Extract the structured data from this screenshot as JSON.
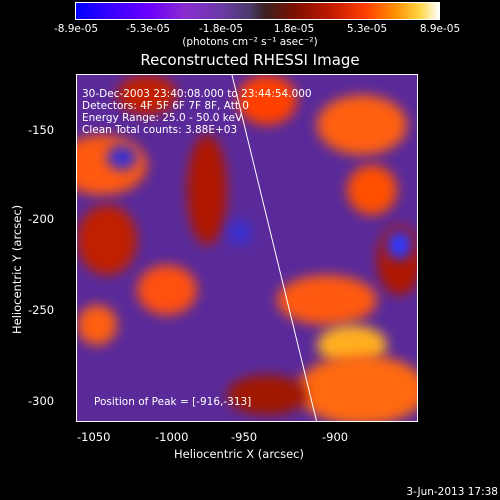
{
  "colorbar": {
    "ticks": [
      "-8.9e-05",
      "-5.3e-05",
      "-1.8e-05",
      "1.8e-05",
      "5.3e-05",
      "8.9e-05"
    ],
    "units": "(photons cm⁻² s⁻¹ asec⁻²)"
  },
  "image": {
    "title": "Reconstructed RHESSI Image",
    "annotations": [
      "30-Dec-2003 23:40:08.000 to 23:44:54.000",
      "Detectors: 4F 5F 6F 7F 8F, Att 0",
      "Energy Range: 25.0 - 50.0 keV",
      "Clean     Total counts: 3.88E+03"
    ],
    "peak_label": "Position of Peak = [-916,-313]"
  },
  "axes": {
    "xlabel": "Heliocentric X (arcsec)",
    "ylabel": "Heliocentric Y (arcsec)",
    "xticks": [
      "-1050",
      "-1000",
      "-950",
      "-900"
    ],
    "yticks": [
      "-150",
      "-200",
      "-250",
      "-300"
    ]
  },
  "footer": {
    "date": "3-Jun-2013 17:38"
  }
}
